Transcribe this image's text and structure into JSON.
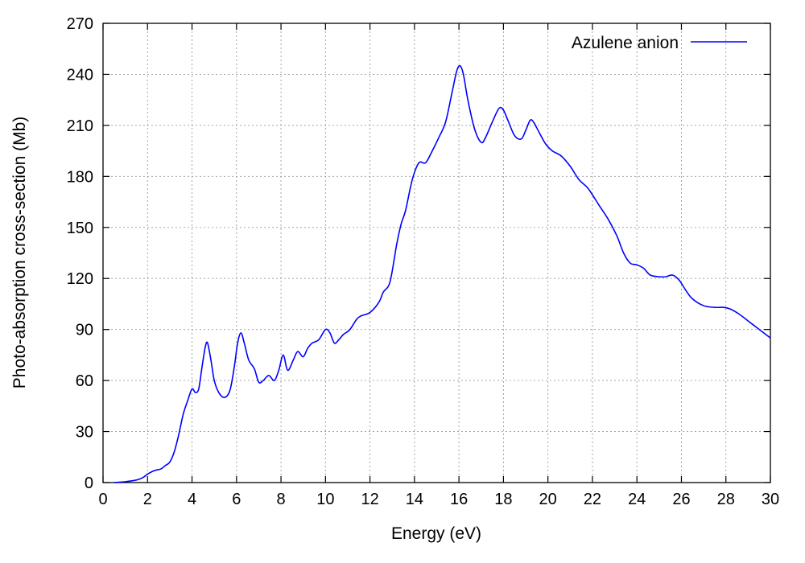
{
  "chart_data": {
    "type": "line",
    "xlabel": "Energy (eV)",
    "ylabel": "Photo-absorption cross-section (Mb)",
    "xlim": [
      0,
      30
    ],
    "ylim": [
      0,
      270
    ],
    "xticks": [
      0,
      2,
      4,
      6,
      8,
      10,
      12,
      14,
      16,
      18,
      20,
      22,
      24,
      26,
      28,
      30
    ],
    "yticks": [
      0,
      30,
      60,
      90,
      120,
      150,
      180,
      210,
      240,
      270
    ],
    "grid": true,
    "legend_position": "top-right",
    "series": [
      {
        "name": "Azulene anion",
        "color": "#0000ff",
        "x": [
          0.5,
          1.0,
          1.5,
          1.8,
          2.0,
          2.3,
          2.6,
          2.8,
          3.0,
          3.2,
          3.4,
          3.6,
          3.8,
          4.0,
          4.15,
          4.3,
          4.45,
          4.6,
          4.7,
          4.85,
          5.0,
          5.2,
          5.45,
          5.7,
          5.9,
          6.05,
          6.2,
          6.35,
          6.55,
          6.8,
          7.0,
          7.2,
          7.45,
          7.7,
          7.9,
          8.1,
          8.3,
          8.55,
          8.75,
          9.0,
          9.2,
          9.4,
          9.7,
          10.0,
          10.2,
          10.4,
          10.6,
          10.8,
          11.1,
          11.4,
          11.6,
          12.0,
          12.4,
          12.6,
          12.9,
          13.2,
          13.4,
          13.6,
          13.9,
          14.2,
          14.5,
          14.8,
          15.1,
          15.4,
          15.7,
          15.9,
          16.05,
          16.2,
          16.4,
          16.7,
          17.0,
          17.2,
          17.5,
          17.8,
          18.0,
          18.2,
          18.5,
          18.8,
          19.0,
          19.2,
          19.35,
          19.6,
          19.9,
          20.2,
          20.6,
          21.0,
          21.4,
          21.8,
          22.3,
          22.7,
          23.1,
          23.4,
          23.7,
          24.0,
          24.3,
          24.6,
          25.0,
          25.3,
          25.6,
          25.9,
          26.2,
          26.5,
          27.0,
          27.5,
          27.9,
          28.2,
          28.6,
          29.0,
          29.4,
          29.8,
          30.0
        ],
        "y": [
          0,
          0.5,
          1.5,
          3,
          5,
          7,
          8,
          10,
          12,
          18,
          28,
          40,
          48,
          55,
          53,
          55,
          68,
          80,
          82,
          72,
          60,
          53,
          50,
          54,
          68,
          82,
          88,
          82,
          72,
          67,
          59,
          60,
          63,
          60,
          66,
          75,
          66,
          72,
          77,
          74,
          79,
          82,
          84,
          90,
          88,
          82,
          84,
          87,
          90,
          96,
          98,
          100,
          106,
          112,
          118,
          140,
          152,
          160,
          178,
          188,
          188,
          195,
          203,
          212,
          230,
          242,
          245,
          240,
          225,
          208,
          200,
          203,
          212,
          220,
          219,
          213,
          204,
          202,
          207,
          213,
          212,
          206,
          199,
          195,
          192,
          186,
          178,
          173,
          163,
          155,
          145,
          135,
          129,
          128,
          126,
          122,
          121,
          121,
          122,
          119,
          113,
          108,
          104,
          103,
          103,
          102,
          99,
          95,
          91,
          87,
          85
        ]
      }
    ]
  }
}
